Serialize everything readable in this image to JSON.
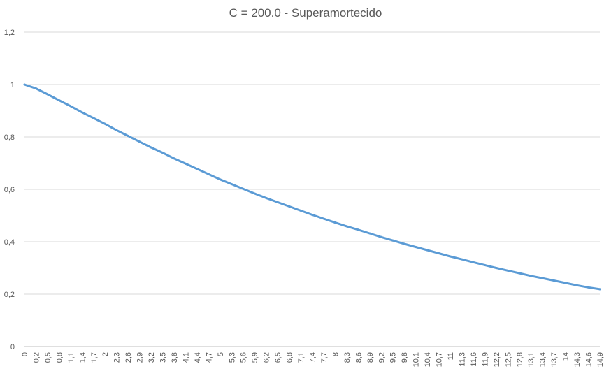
{
  "chart_data": {
    "type": "line",
    "title": "C = 200.0 - Superamortecido",
    "xlabel": "",
    "ylabel": "",
    "ylim": [
      0,
      1.2
    ],
    "yticks": [
      "0",
      "0,2",
      "0,4",
      "0,6",
      "0,8",
      "1",
      "1,2"
    ],
    "grid": true,
    "legend": "none",
    "line_color": "#5b9bd5",
    "x": [
      "0",
      "0,2",
      "0,5",
      "0,8",
      "1,1",
      "1,4",
      "1,7",
      "2",
      "2,3",
      "2,6",
      "2,9",
      "3,2",
      "3,5",
      "3,8",
      "4,1",
      "4,4",
      "4,7",
      "5",
      "5,3",
      "5,6",
      "5,9",
      "6,2",
      "6,5",
      "6,8",
      "7,1",
      "7,4",
      "7,7",
      "8",
      "8,3",
      "8,6",
      "8,9",
      "9,2",
      "9,5",
      "9,8",
      "10,1",
      "10,4",
      "10,7",
      "11",
      "11,3",
      "11,6",
      "11,9",
      "12,2",
      "12,5",
      "12,8",
      "13,1",
      "13,4",
      "13,7",
      "14",
      "14,3",
      "14,6",
      "14,9"
    ],
    "series": [
      {
        "values": [
          1.0,
          0.985,
          0.963,
          0.94,
          0.918,
          0.894,
          0.872,
          0.85,
          0.826,
          0.804,
          0.782,
          0.76,
          0.74,
          0.718,
          0.698,
          0.678,
          0.658,
          0.638,
          0.62,
          0.602,
          0.584,
          0.567,
          0.551,
          0.535,
          0.519,
          0.503,
          0.488,
          0.473,
          0.459,
          0.446,
          0.432,
          0.418,
          0.405,
          0.392,
          0.38,
          0.368,
          0.356,
          0.344,
          0.333,
          0.322,
          0.311,
          0.3,
          0.29,
          0.28,
          0.27,
          0.261,
          0.252,
          0.243,
          0.234,
          0.226,
          0.219
        ]
      }
    ]
  }
}
